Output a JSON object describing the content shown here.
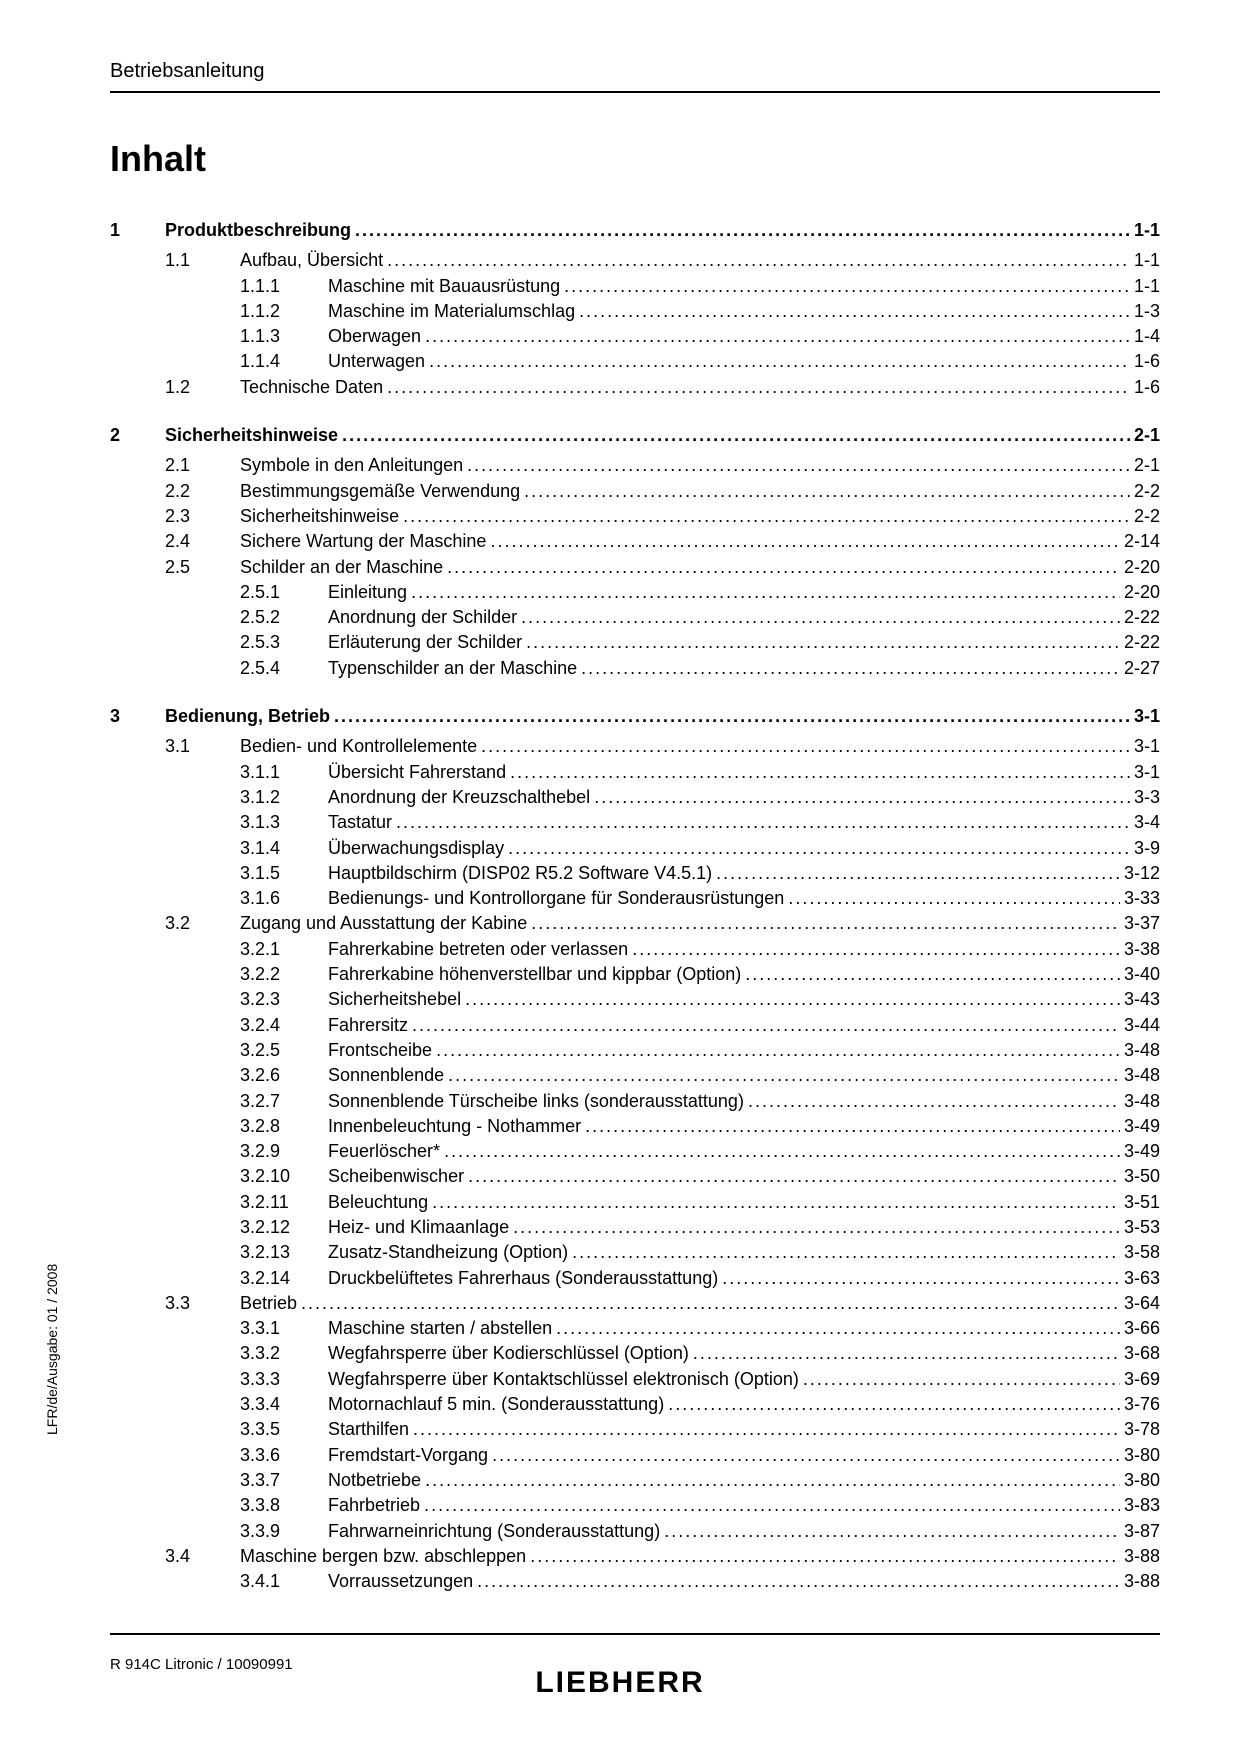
{
  "header": "Betriebsanleitung",
  "title": "Inhalt",
  "side_text": "LFR/de/Ausgabe: 01 / 2008",
  "footer_left": "R 914C Litronic / 10090991",
  "footer_logo": "LIEBHERR",
  "toc": [
    {
      "level": 0,
      "num": "1",
      "label": "Produktbeschreibung",
      "page": "1-1"
    },
    {
      "level": 1,
      "num": "1.1",
      "label": "Aufbau, Übersicht",
      "page": "1-1"
    },
    {
      "level": 2,
      "num": "1.1.1",
      "label": "Maschine mit Bauausrüstung",
      "page": "1-1"
    },
    {
      "level": 2,
      "num": "1.1.2",
      "label": "Maschine im Materialumschlag",
      "page": "1-3"
    },
    {
      "level": 2,
      "num": "1.1.3",
      "label": "Oberwagen",
      "page": "1-4"
    },
    {
      "level": 2,
      "num": "1.1.4",
      "label": "Unterwagen",
      "page": "1-6"
    },
    {
      "level": 1,
      "num": "1.2",
      "label": "Technische Daten",
      "page": "1-6"
    },
    {
      "level": 0,
      "num": "2",
      "label": "Sicherheitshinweise",
      "page": "2-1"
    },
    {
      "level": 1,
      "num": "2.1",
      "label": "Symbole in den Anleitungen",
      "page": "2-1"
    },
    {
      "level": 1,
      "num": "2.2",
      "label": "Bestimmungsgemäße Verwendung",
      "page": "2-2"
    },
    {
      "level": 1,
      "num": "2.3",
      "label": "Sicherheitshinweise",
      "page": "2-2"
    },
    {
      "level": 1,
      "num": "2.4",
      "label": "Sichere Wartung der Maschine",
      "page": "2-14"
    },
    {
      "level": 1,
      "num": "2.5",
      "label": "Schilder an der Maschine",
      "page": "2-20"
    },
    {
      "level": 2,
      "num": "2.5.1",
      "label": "Einleitung",
      "page": "2-20"
    },
    {
      "level": 2,
      "num": "2.5.2",
      "label": "Anordnung der Schilder",
      "page": "2-22"
    },
    {
      "level": 2,
      "num": "2.5.3",
      "label": "Erläuterung der Schilder",
      "page": "2-22"
    },
    {
      "level": 2,
      "num": "2.5.4",
      "label": "Typenschilder an der Maschine",
      "page": "2-27"
    },
    {
      "level": 0,
      "num": "3",
      "label": "Bedienung, Betrieb",
      "page": "3-1"
    },
    {
      "level": 1,
      "num": "3.1",
      "label": "Bedien- und Kontrollelemente",
      "page": "3-1"
    },
    {
      "level": 2,
      "num": "3.1.1",
      "label": "Übersicht Fahrerstand",
      "page": "3-1"
    },
    {
      "level": 2,
      "num": "3.1.2",
      "label": "Anordnung der Kreuzschalthebel",
      "page": "3-3"
    },
    {
      "level": 2,
      "num": "3.1.3",
      "label": "Tastatur",
      "page": "3-4"
    },
    {
      "level": 2,
      "num": "3.1.4",
      "label": "Überwachungsdisplay",
      "page": "3-9"
    },
    {
      "level": 2,
      "num": "3.1.5",
      "label": "Hauptbildschirm (DISP02 R5.2 Software V4.5.1)",
      "page": "3-12"
    },
    {
      "level": 2,
      "num": "3.1.6",
      "label": "Bedienungs- und Kontrollorgane für Sonderausrüstungen",
      "page": "3-33"
    },
    {
      "level": 1,
      "num": "3.2",
      "label": "Zugang und Ausstattung der Kabine",
      "page": "3-37"
    },
    {
      "level": 2,
      "num": "3.2.1",
      "label": "Fahrerkabine betreten oder verlassen",
      "page": "3-38"
    },
    {
      "level": 2,
      "num": "3.2.2",
      "label": "Fahrerkabine höhenverstellbar und kippbar (Option)",
      "page": "3-40"
    },
    {
      "level": 2,
      "num": "3.2.3",
      "label": "Sicherheitshebel",
      "page": "3-43"
    },
    {
      "level": 2,
      "num": "3.2.4",
      "label": "Fahrersitz",
      "page": "3-44"
    },
    {
      "level": 2,
      "num": "3.2.5",
      "label": "Frontscheibe",
      "page": "3-48"
    },
    {
      "level": 2,
      "num": "3.2.6",
      "label": "Sonnenblende",
      "page": "3-48"
    },
    {
      "level": 2,
      "num": "3.2.7",
      "label": "Sonnenblende Türscheibe links (sonderausstattung)",
      "page": "3-48"
    },
    {
      "level": 2,
      "num": "3.2.8",
      "label": "Innenbeleuchtung - Nothammer",
      "page": "3-49"
    },
    {
      "level": 2,
      "num": "3.2.9",
      "label": "Feuerlöscher*",
      "page": "3-49"
    },
    {
      "level": 2,
      "num": "3.2.10",
      "label": "Scheibenwischer",
      "page": "3-50"
    },
    {
      "level": 2,
      "num": "3.2.11",
      "label": "Beleuchtung",
      "page": "3-51"
    },
    {
      "level": 2,
      "num": "3.2.12",
      "label": "Heiz- und Klimaanlage",
      "page": "3-53"
    },
    {
      "level": 2,
      "num": "3.2.13",
      "label": "Zusatz-Standheizung (Option)",
      "page": "3-58"
    },
    {
      "level": 2,
      "num": "3.2.14",
      "label": "Druckbelüftetes Fahrerhaus (Sonderausstattung)",
      "page": "3-63"
    },
    {
      "level": 1,
      "num": "3.3",
      "label": "Betrieb",
      "page": "3-64"
    },
    {
      "level": 2,
      "num": "3.3.1",
      "label": "Maschine starten / abstellen",
      "page": "3-66"
    },
    {
      "level": 2,
      "num": "3.3.2",
      "label": "Wegfahrsperre über Kodierschlüssel (Option)",
      "page": "3-68"
    },
    {
      "level": 2,
      "num": "3.3.3",
      "label": "Wegfahrsperre über Kontaktschlüssel elektronisch (Option)",
      "page": "3-69"
    },
    {
      "level": 2,
      "num": "3.3.4",
      "label": "Motornachlauf 5 min. (Sonderausstattung)",
      "page": "3-76"
    },
    {
      "level": 2,
      "num": "3.3.5",
      "label": "Starthilfen",
      "page": "3-78"
    },
    {
      "level": 2,
      "num": "3.3.6",
      "label": "Fremdstart-Vorgang",
      "page": "3-80"
    },
    {
      "level": 2,
      "num": "3.3.7",
      "label": "Notbetriebe",
      "page": "3-80"
    },
    {
      "level": 2,
      "num": "3.3.8",
      "label": "Fahrbetrieb",
      "page": "3-83"
    },
    {
      "level": 2,
      "num": "3.3.9",
      "label": "Fahrwarneinrichtung (Sonderausstattung)",
      "page": "3-87"
    },
    {
      "level": 1,
      "num": "3.4",
      "label": "Maschine bergen bzw. abschleppen",
      "page": "3-88"
    },
    {
      "level": 2,
      "num": "3.4.1",
      "label": "Vorraussetzungen",
      "page": "3-88"
    }
  ]
}
